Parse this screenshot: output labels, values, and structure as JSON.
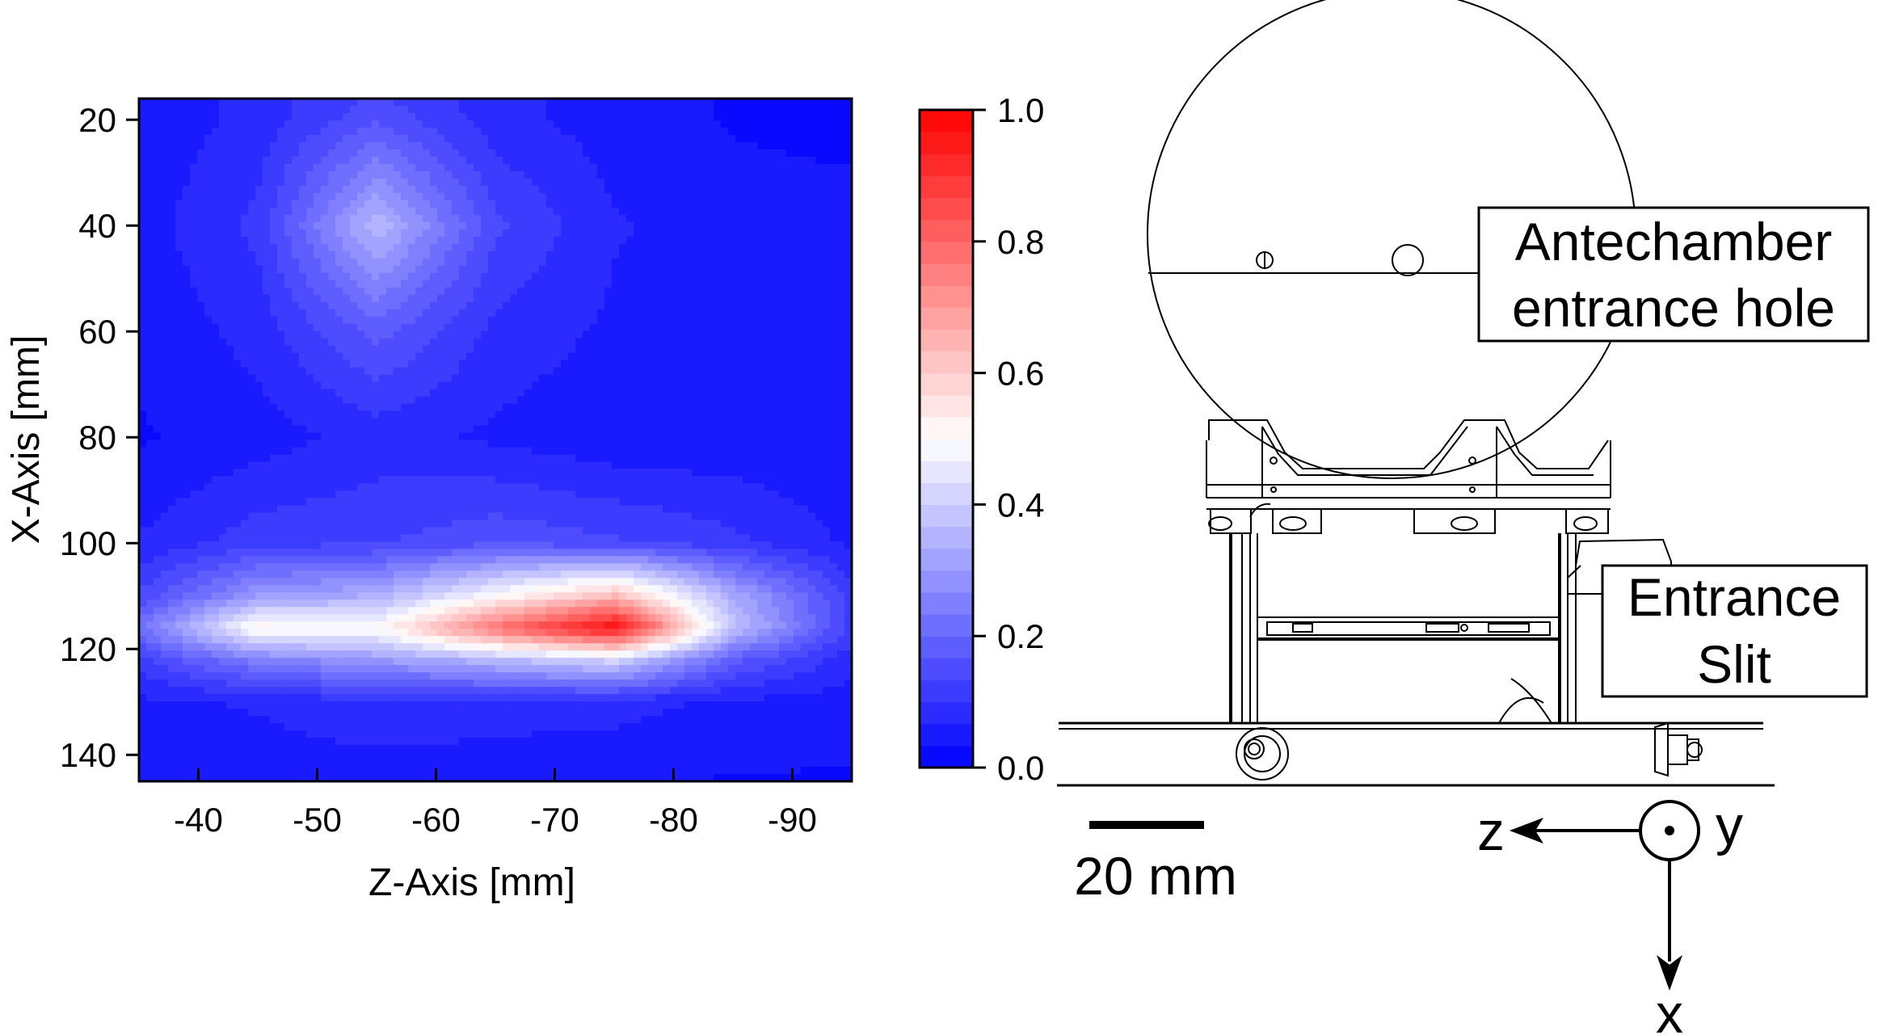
{
  "chart_data": {
    "type": "heatmap",
    "xlabel": "Z-Axis [mm]",
    "ylabel": "X-Axis [mm]",
    "xlim": [
      -35,
      -95
    ],
    "ylim": [
      145,
      16
    ],
    "x_ticks": [
      -40,
      -50,
      -60,
      -70,
      -80,
      -90
    ],
    "y_ticks": [
      20,
      40,
      60,
      80,
      100,
      120,
      140
    ],
    "colorbar": {
      "range": [
        0.0,
        1.0
      ],
      "ticks": [
        "0.0",
        "0.2",
        "0.4",
        "0.6",
        "0.8",
        "1.0"
      ],
      "low_color": "#0000ff",
      "mid_color": "#ffffff",
      "high_color": "#ff0000"
    },
    "x": [
      -35,
      -45,
      -55,
      -65,
      -75,
      -85,
      -95
    ],
    "y": [
      16,
      20,
      40,
      60,
      80,
      100,
      110,
      116,
      122,
      130,
      145
    ],
    "z": [
      [
        0.04,
        0.08,
        0.14,
        0.08,
        0.05,
        0.03,
        0.02
      ],
      [
        0.04,
        0.08,
        0.16,
        0.08,
        0.05,
        0.03,
        0.02
      ],
      [
        0.05,
        0.11,
        0.36,
        0.14,
        0.07,
        0.05,
        0.05
      ],
      [
        0.04,
        0.08,
        0.18,
        0.09,
        0.06,
        0.05,
        0.04
      ],
      [
        0.03,
        0.05,
        0.08,
        0.06,
        0.04,
        0.04,
        0.04
      ],
      [
        0.07,
        0.12,
        0.13,
        0.16,
        0.14,
        0.11,
        0.06
      ],
      [
        0.14,
        0.3,
        0.34,
        0.5,
        0.64,
        0.33,
        0.12
      ],
      [
        0.22,
        0.52,
        0.5,
        0.78,
        0.98,
        0.38,
        0.12
      ],
      [
        0.12,
        0.25,
        0.3,
        0.36,
        0.42,
        0.18,
        0.08
      ],
      [
        0.06,
        0.07,
        0.09,
        0.08,
        0.08,
        0.06,
        0.05
      ],
      [
        0.04,
        0.05,
        0.05,
        0.05,
        0.04,
        0.03,
        0.03
      ]
    ]
  },
  "schematic": {
    "labels": {
      "antechamber": [
        "Antechamber",
        "entrance hole"
      ],
      "slit": [
        "Entrance",
        "Slit"
      ],
      "scale": "20 mm"
    },
    "axes": {
      "z": "z",
      "y": "y",
      "x": "x"
    }
  }
}
